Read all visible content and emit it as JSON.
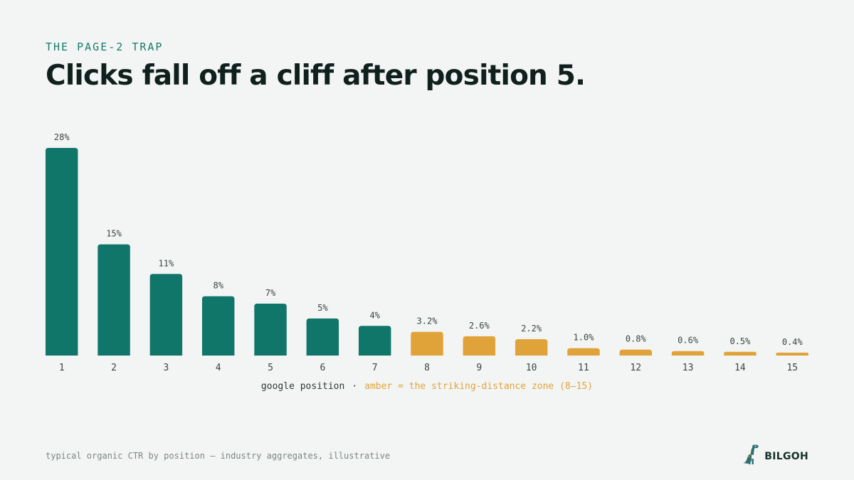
{
  "header": {
    "kicker": "THE PAGE-2 TRAP",
    "title": "Clicks fall off a cliff after position 5."
  },
  "axis_caption": {
    "xlabel": "google position",
    "separator": "·",
    "legend_note": "amber = the striking-distance zone (8–15)"
  },
  "footer": {
    "note": "typical organic CTR by position — industry aggregates, illustrative",
    "brand_name": "BILGOH",
    "brand_icon": "dinosaur-logo-icon"
  },
  "colors": {
    "background": "#f3f5f4",
    "teal": "#11766a",
    "amber": "#e0a33a",
    "title": "#10201c",
    "kicker": "#1a7a6b"
  },
  "chart_data": {
    "type": "bar",
    "title": "Clicks fall off a cliff after position 5.",
    "xlabel": "google position",
    "ylabel": "",
    "categories": [
      "1",
      "2",
      "3",
      "4",
      "5",
      "6",
      "7",
      "8",
      "9",
      "10",
      "11",
      "12",
      "13",
      "14",
      "15"
    ],
    "values": [
      28,
      15,
      11,
      8,
      7,
      5,
      4,
      3.2,
      2.6,
      2.2,
      1.0,
      0.8,
      0.6,
      0.5,
      0.4
    ],
    "value_labels": [
      "28%",
      "15%",
      "11%",
      "8%",
      "7%",
      "5%",
      "4%",
      "3.2%",
      "2.6%",
      "2.2%",
      "1.0%",
      "0.8%",
      "0.6%",
      "0.5%",
      "0.4%"
    ],
    "highlight_range": [
      8,
      15
    ],
    "ylim": [
      0,
      28
    ],
    "grid": false,
    "legend": "below x-axis, inline text"
  }
}
